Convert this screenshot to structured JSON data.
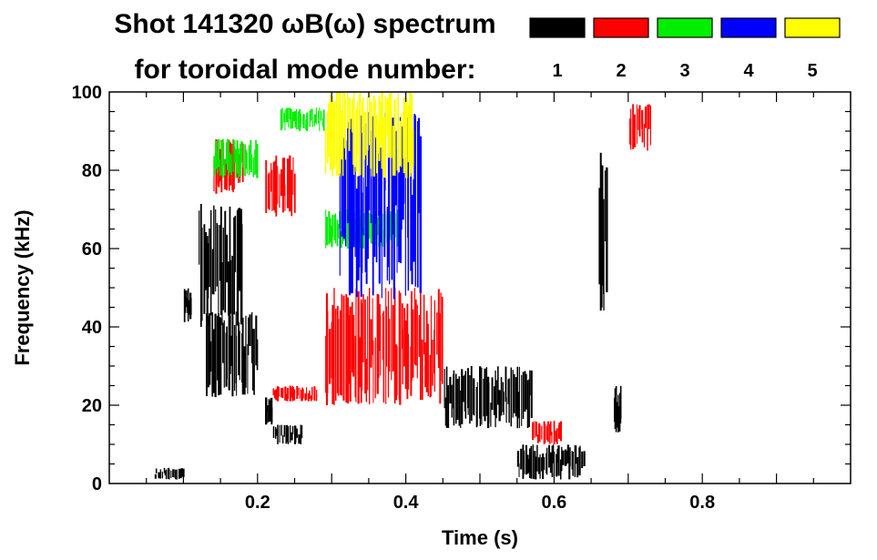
{
  "chart_data": {
    "type": "heatmap",
    "title_line1": "Shot 141320 ωB(ω) spectrum",
    "title_line2": "for toroidal mode number:",
    "xlabel": "Time (s)",
    "ylabel": "Frequency (kHz)",
    "xlim": [
      0.0,
      1.0
    ],
    "ylim": [
      0,
      100
    ],
    "x_ticks": [
      0.2,
      0.4,
      0.6,
      0.8
    ],
    "x_tick_labels": [
      "0.2",
      "0.4",
      "0.6",
      "0.8"
    ],
    "y_ticks": [
      0,
      20,
      40,
      60,
      80,
      100
    ],
    "y_tick_labels": [
      "0",
      "20",
      "40",
      "60",
      "80",
      "100"
    ],
    "legend": [
      {
        "label": "1",
        "color": "#000000"
      },
      {
        "label": "2",
        "color": "#ff0000"
      },
      {
        "label": "3",
        "color": "#00ee00"
      },
      {
        "label": "4",
        "color": "#0000ff"
      },
      {
        "label": "5",
        "color": "#ffff00"
      }
    ],
    "features": [
      {
        "mode": "1",
        "t": [
          0.1,
          0.11
        ],
        "f": [
          41,
          50
        ]
      },
      {
        "mode": "1",
        "t": [
          0.12,
          0.18
        ],
        "f": [
          40,
          72
        ]
      },
      {
        "mode": "1",
        "t": [
          0.13,
          0.2
        ],
        "f": [
          22,
          44
        ]
      },
      {
        "mode": "1",
        "t": [
          0.06,
          0.1
        ],
        "f": [
          1,
          4
        ]
      },
      {
        "mode": "1",
        "t": [
          0.22,
          0.26
        ],
        "f": [
          10,
          15
        ]
      },
      {
        "mode": "1",
        "t": [
          0.21,
          0.22
        ],
        "f": [
          15,
          22
        ]
      },
      {
        "mode": "1",
        "t": [
          0.45,
          0.57
        ],
        "f": [
          14,
          30
        ]
      },
      {
        "mode": "1",
        "t": [
          0.55,
          0.64
        ],
        "f": [
          1,
          10
        ]
      },
      {
        "mode": "1",
        "t": [
          0.66,
          0.67
        ],
        "f": [
          44,
          85
        ]
      },
      {
        "mode": "1",
        "t": [
          0.68,
          0.69
        ],
        "f": [
          13,
          25
        ]
      },
      {
        "mode": "2",
        "t": [
          0.14,
          0.18
        ],
        "f": [
          74,
          88
        ]
      },
      {
        "mode": "2",
        "t": [
          0.21,
          0.25
        ],
        "f": [
          68,
          84
        ]
      },
      {
        "mode": "2",
        "t": [
          0.22,
          0.28
        ],
        "f": [
          21,
          25
        ]
      },
      {
        "mode": "2",
        "t": [
          0.29,
          0.45
        ],
        "f": [
          20,
          50
        ]
      },
      {
        "mode": "2",
        "t": [
          0.57,
          0.61
        ],
        "f": [
          10,
          16
        ]
      },
      {
        "mode": "2",
        "t": [
          0.7,
          0.73
        ],
        "f": [
          85,
          97
        ]
      },
      {
        "mode": "3",
        "t": [
          0.14,
          0.2
        ],
        "f": [
          78,
          88
        ]
      },
      {
        "mode": "3",
        "t": [
          0.23,
          0.29
        ],
        "f": [
          90,
          96
        ]
      },
      {
        "mode": "3",
        "t": [
          0.29,
          0.39
        ],
        "f": [
          60,
          70
        ]
      },
      {
        "mode": "4",
        "t": [
          0.31,
          0.42
        ],
        "f": [
          47,
          95
        ]
      },
      {
        "mode": "5",
        "t": [
          0.29,
          0.41
        ],
        "f": [
          78,
          100
        ]
      }
    ]
  }
}
